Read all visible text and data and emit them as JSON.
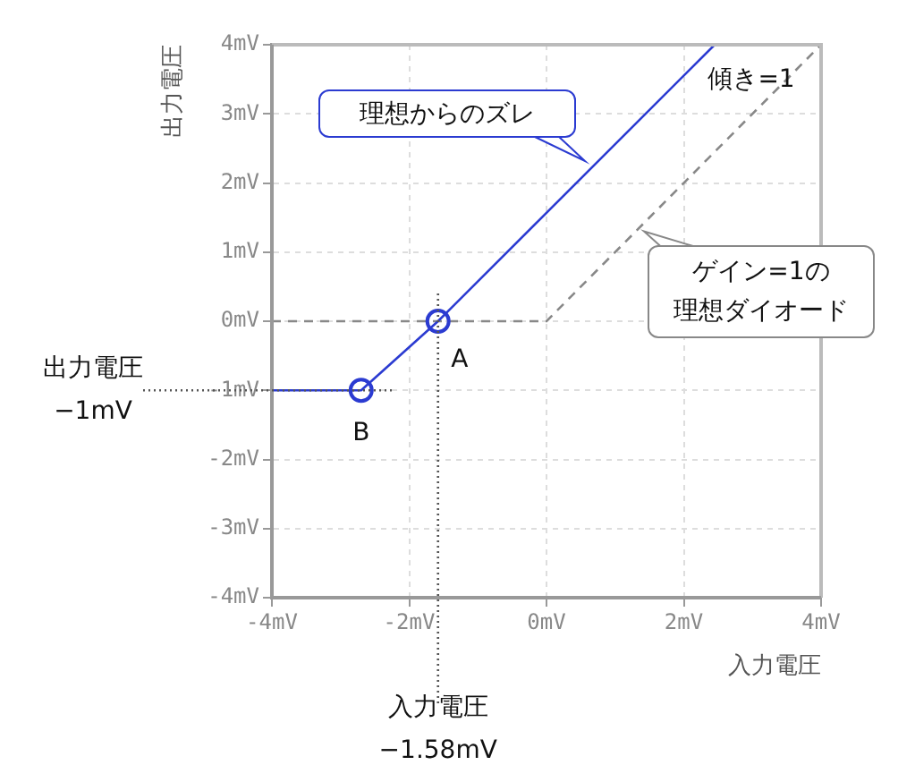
{
  "chart_data": {
    "type": "line",
    "xlabel": "入力電圧",
    "ylabel": "出力電圧",
    "xlim": [
      -4,
      4
    ],
    "ylim": [
      -4,
      4
    ],
    "xticks": [
      {
        "value": -4,
        "label": "-4mV"
      },
      {
        "value": -2,
        "label": "-2mV"
      },
      {
        "value": 0,
        "label": "0mV"
      },
      {
        "value": 2,
        "label": "2mV"
      },
      {
        "value": 4,
        "label": "4mV"
      }
    ],
    "yticks": [
      {
        "value": -4,
        "label": "-4mV"
      },
      {
        "value": -3,
        "label": "-3mV"
      },
      {
        "value": -2,
        "label": "-2mV"
      },
      {
        "value": -1,
        "label": "-1mV"
      },
      {
        "value": 0,
        "label": "0mV"
      },
      {
        "value": 1,
        "label": "1mV"
      },
      {
        "value": 2,
        "label": "2mV"
      },
      {
        "value": 3,
        "label": "3mV"
      },
      {
        "value": 4,
        "label": "4mV"
      }
    ],
    "grid": true,
    "series": [
      {
        "type": "line",
        "color": "#2b3bd1",
        "x": [
          -4,
          -2.7,
          -1.58,
          2.45
        ],
        "values": [
          -1,
          -1,
          0,
          4
        ],
        "marker": "none",
        "line_style": "solid"
      },
      {
        "type": "scatter",
        "color": "#2b3bd1",
        "x": [
          -2.7,
          -1.58
        ],
        "values": [
          -1,
          0
        ],
        "marker": "circle"
      },
      {
        "type": "line",
        "color": "#888888",
        "x": [
          -4,
          0,
          4
        ],
        "values": [
          0,
          0,
          4
        ],
        "marker": "none",
        "line_style": "dashed"
      }
    ],
    "ref_lines": [
      {
        "axis": "x",
        "value": -1.58,
        "label": "入力電圧\n−1.58mV",
        "line_style": "dotted",
        "color": "#555555"
      },
      {
        "axis": "y",
        "value": -1,
        "label": "出力電圧\n−1mV",
        "line_style": "dotted",
        "color": "#555555"
      }
    ],
    "annotations": [
      "理想からのズレ",
      "傾き=1",
      {
        "text": "ゲイン=1の理想ダイオード",
        "x": 1.42,
        "y": 1.3
      },
      {
        "text": "A",
        "x": -1.58,
        "y": 0
      },
      {
        "text": "B",
        "x": -2.7,
        "y": -1
      }
    ]
  }
}
